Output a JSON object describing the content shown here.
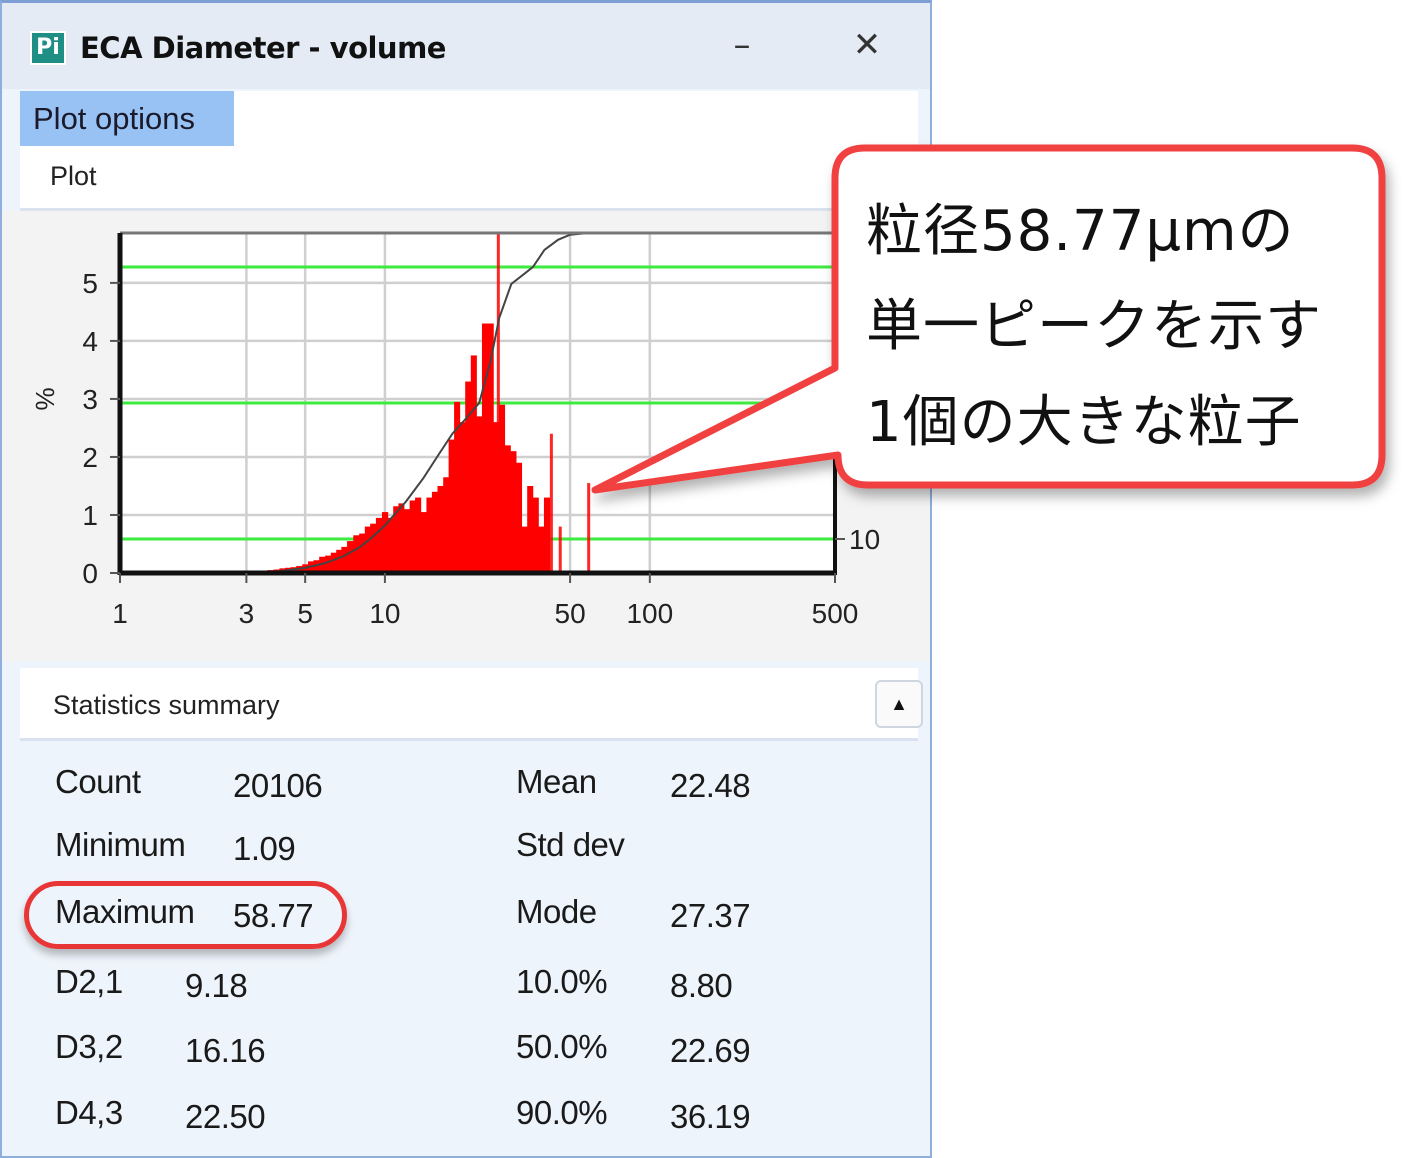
{
  "window": {
    "title": "ECA Diameter - volume",
    "app_icon": "app-logo-icon",
    "app_icon_text": "Pi",
    "minimize_label": "–",
    "close_label": "✕"
  },
  "tabs": {
    "active": "Plot options",
    "section": "Plot"
  },
  "colors": {
    "histogram": "#ff0000",
    "percentile_lines": "#3dea3d",
    "cumulative": "#444444",
    "accent_tab": "#99c2f4",
    "callout_border": "#f04040"
  },
  "chart_data": {
    "type": "bar",
    "xscale": "log",
    "xlim": [
      1,
      500
    ],
    "ylim": [
      0,
      5.86
    ],
    "ylabel": "%",
    "x_ticks": [
      "1",
      "3",
      "5",
      "10",
      "50",
      "100",
      "500"
    ],
    "y_ticks": [
      "0",
      "1",
      "2",
      "3",
      "4",
      "5"
    ],
    "grid": true,
    "histogram": {
      "x": [
        3.5,
        3.7,
        3.9,
        4.1,
        4.3,
        4.5,
        4.75,
        5.0,
        5.25,
        5.5,
        5.8,
        6.1,
        6.4,
        6.7,
        7.0,
        7.4,
        7.8,
        8.2,
        8.6,
        9.0,
        9.5,
        10.0,
        10.5,
        11.0,
        11.5,
        12.1,
        12.7,
        13.3,
        14.0,
        14.7,
        15.4,
        16.2,
        17.0,
        17.8,
        18.7,
        19.6,
        20.6,
        21.6,
        22.7,
        23.8,
        25.0,
        26.3,
        27.6,
        29.0,
        30.5,
        32.0,
        33.6,
        35.3,
        37.0,
        38.9,
        40.8
      ],
      "y": [
        0.04,
        0.05,
        0.06,
        0.08,
        0.09,
        0.1,
        0.12,
        0.15,
        0.2,
        0.22,
        0.28,
        0.3,
        0.35,
        0.4,
        0.45,
        0.55,
        0.65,
        0.68,
        0.8,
        0.85,
        0.95,
        1.05,
        0.95,
        1.15,
        1.2,
        1.1,
        1.25,
        1.3,
        1.05,
        1.3,
        1.4,
        1.5,
        1.65,
        2.3,
        2.95,
        2.6,
        3.3,
        3.75,
        2.7,
        4.3,
        4.3,
        2.6,
        2.9,
        2.2,
        2.1,
        1.9,
        0.8,
        1.5,
        1.3,
        0.8,
        1.3
      ]
    },
    "spikes": {
      "x": [
        26.8,
        42.5,
        45.9,
        58.77
      ],
      "y": [
        5.86,
        2.4,
        0.8,
        1.55
      ]
    },
    "cumulative": {
      "axis": "right",
      "ylim": [
        0,
        100
      ],
      "x": [
        2.5,
        4,
        5,
        6,
        7,
        8,
        8.8,
        10,
        12,
        14,
        16,
        18,
        20,
        22.69,
        25,
        27,
        30,
        36.19,
        40,
        45,
        50,
        58.77
      ],
      "y": [
        0,
        0.5,
        1.5,
        3,
        5,
        7.5,
        10,
        14,
        21,
        28,
        35,
        41,
        45,
        50,
        62,
        75,
        85,
        90,
        95,
        98,
        99.5,
        100
      ]
    },
    "percentile_lines": [
      10,
      50,
      90
    ],
    "right_tick_label": "10"
  },
  "stats": {
    "header": "Statistics summary",
    "collapse_icon": "triangle-up-icon",
    "left": [
      {
        "label": "Count",
        "value": "20106"
      },
      {
        "label": "Minimum",
        "value": "1.09"
      },
      {
        "label": "Maximum",
        "value": "58.77"
      },
      {
        "label": "D2,1",
        "value": "9.18"
      },
      {
        "label": "D3,2",
        "value": "16.16"
      },
      {
        "label": "D4,3",
        "value": "22.50"
      }
    ],
    "right": [
      {
        "label": "Mean",
        "value": "22.48"
      },
      {
        "label": "Std dev",
        "value": ""
      },
      {
        "label": "Mode",
        "value": "27.37"
      },
      {
        "label": "10.0%",
        "value": "8.80"
      },
      {
        "label": "50.0%",
        "value": "22.69"
      },
      {
        "label": "90.0%",
        "value": "36.19"
      }
    ]
  },
  "callout": {
    "lines": [
      "粒径58.77μmの",
      "単一ピークを示す",
      "1個の大きな粒子"
    ]
  }
}
